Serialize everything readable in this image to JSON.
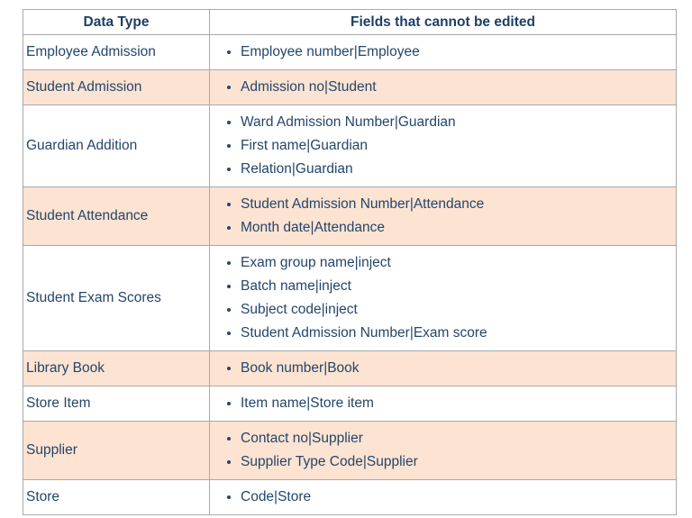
{
  "table": {
    "headers": {
      "data_type": "Data Type",
      "fields": "Fields that cannot be edited"
    },
    "rows": [
      {
        "data_type": "Employee Admission",
        "fields": [
          "Employee number|Employee"
        ]
      },
      {
        "data_type": "Student Admission",
        "fields": [
          "Admission no|Student"
        ]
      },
      {
        "data_type": "Guardian Addition",
        "fields": [
          "Ward Admission Number|Guardian",
          "First name|Guardian",
          "Relation|Guardian"
        ]
      },
      {
        "data_type": "Student Attendance",
        "fields": [
          "Student Admission Number|Attendance",
          "Month date|Attendance"
        ]
      },
      {
        "data_type": "Student Exam Scores",
        "fields": [
          "Exam group name|inject",
          "Batch name|inject",
          "Subject code|inject",
          "Student Admission Number|Exam score"
        ]
      },
      {
        "data_type": "Library Book",
        "fields": [
          "Book number|Book"
        ]
      },
      {
        "data_type": "Store Item",
        "fields": [
          "Item name|Store item"
        ]
      },
      {
        "data_type": "Supplier",
        "fields": [
          "Contact no|Supplier",
          "Supplier Type Code|Supplier"
        ]
      },
      {
        "data_type": "Store",
        "fields": [
          "Code|Store"
        ]
      }
    ],
    "colors": {
      "stripe_bg": "#fce3d2",
      "body_text": "#24466b",
      "header_text": "#1d3f63",
      "border": "#a9a9a9"
    }
  }
}
